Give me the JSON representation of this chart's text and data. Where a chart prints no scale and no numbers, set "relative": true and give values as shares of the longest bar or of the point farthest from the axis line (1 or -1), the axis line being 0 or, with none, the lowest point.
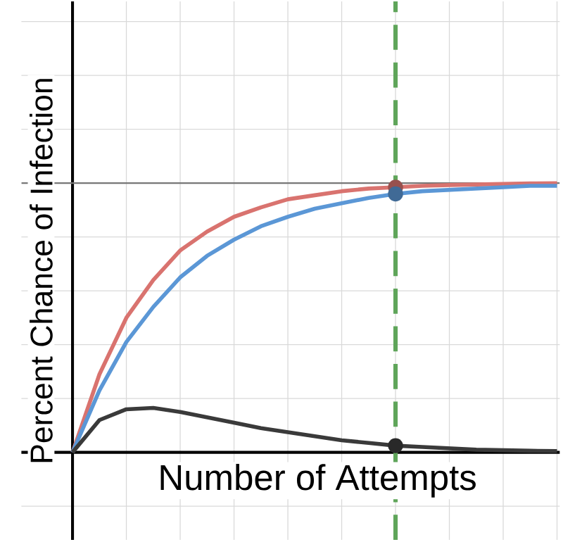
{
  "chart_data": {
    "type": "line",
    "relative": true,
    "xlabel": "Number of Attempts",
    "ylabel": "Percent Chance of Infection",
    "grid": true,
    "categories": [
      null,
      null,
      null,
      null,
      null,
      null,
      null,
      null,
      null,
      null,
      null,
      null,
      null,
      null,
      null,
      null,
      null,
      null,
      null
    ],
    "series": [
      {
        "color": "#d9736f",
        "values": [
          0,
          0.29,
          0.5,
          0.64,
          0.75,
          0.82,
          0.875,
          0.91,
          0.94,
          0.955,
          0.97,
          0.98,
          0.985,
          0.99,
          0.993,
          0.995,
          0.997,
          0.999,
          1
        ]
      },
      {
        "color": "#5b97d6",
        "values": [
          0,
          0.23,
          0.41,
          0.54,
          0.65,
          0.73,
          0.79,
          0.84,
          0.875,
          0.905,
          0.925,
          0.945,
          0.96,
          0.97,
          0.975,
          0.98,
          0.985,
          0.99,
          0.99
        ]
      },
      {
        "color": "#3a3a3a",
        "values": [
          0,
          0.12,
          0.16,
          0.165,
          0.15,
          0.13,
          0.11,
          0.09,
          0.075,
          0.06,
          0.045,
          0.035,
          0.025,
          0.02,
          0.015,
          0.01,
          0.008,
          0.006,
          0.005
        ]
      }
    ],
    "ref_lines": [
      {
        "axis": "y",
        "value": 1,
        "color": "#777777"
      }
    ]
  }
}
